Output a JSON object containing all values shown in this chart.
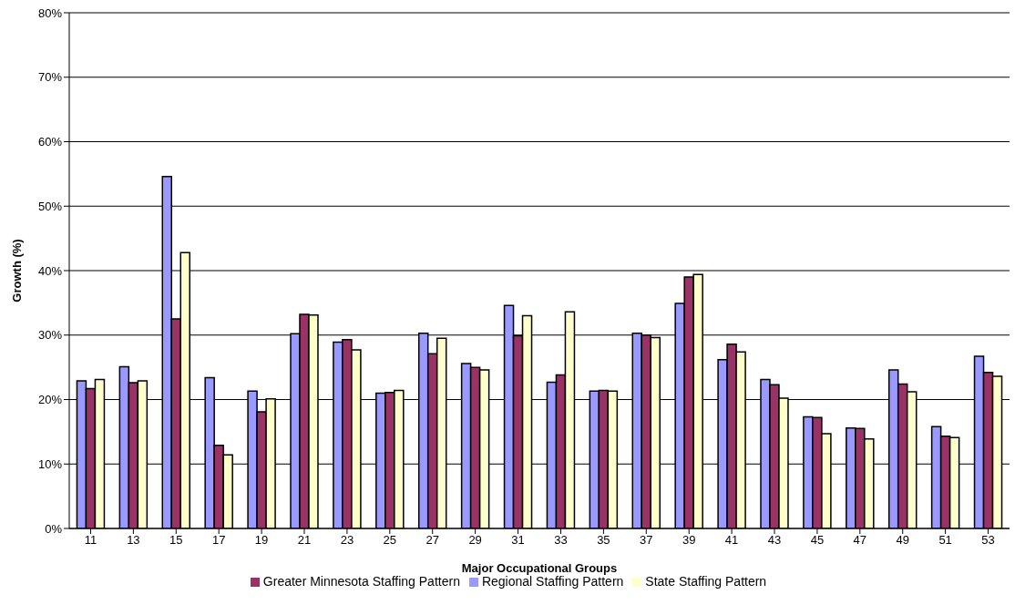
{
  "chart_data": {
    "type": "bar",
    "xlabel": "Major Occupational Groups",
    "ylabel": "Growth (%)",
    "categories": [
      "11",
      "13",
      "15",
      "17",
      "19",
      "21",
      "23",
      "25",
      "27",
      "29",
      "31",
      "33",
      "35",
      "37",
      "39",
      "41",
      "43",
      "45",
      "47",
      "49",
      "51",
      "53"
    ],
    "series": [
      {
        "name": "Regional Staffing Pattern",
        "color": "#9999ff",
        "values": [
          22.9,
          25.1,
          54.6,
          23.4,
          21.3,
          30.2,
          28.9,
          21.0,
          30.3,
          25.6,
          34.6,
          22.7,
          21.3,
          30.3,
          34.9,
          26.2,
          23.1,
          17.3,
          15.6,
          24.6,
          15.8,
          26.7
        ]
      },
      {
        "name": "Greater Minnesota Staffing Pattern",
        "color": "#993366",
        "values": [
          21.7,
          22.6,
          32.5,
          12.9,
          18.1,
          33.2,
          29.3,
          21.1,
          27.1,
          25.0,
          29.9,
          23.8,
          21.4,
          30.0,
          39.0,
          28.6,
          22.3,
          17.2,
          15.5,
          22.4,
          14.3,
          24.2
        ]
      },
      {
        "name": "State Staffing Pattern",
        "color": "#ffffcc",
        "values": [
          23.1,
          22.9,
          42.8,
          11.4,
          20.1,
          33.1,
          27.7,
          21.4,
          29.5,
          24.6,
          33.0,
          33.6,
          21.3,
          29.6,
          39.4,
          27.4,
          20.2,
          14.7,
          13.9,
          21.2,
          14.1,
          23.6
        ]
      }
    ],
    "ylim": [
      0,
      80
    ],
    "yticks": [
      {
        "value": 0,
        "label": "0%"
      },
      {
        "value": 10,
        "label": "10%"
      },
      {
        "value": 20,
        "label": "20%"
      },
      {
        "value": 30,
        "label": "30%"
      },
      {
        "value": 40,
        "label": "40%"
      },
      {
        "value": 50,
        "label": "50%"
      },
      {
        "value": 60,
        "label": "60%"
      },
      {
        "value": 70,
        "label": "70%"
      },
      {
        "value": 80,
        "label": "80%"
      }
    ],
    "grid": "y",
    "legend": "bottom"
  }
}
